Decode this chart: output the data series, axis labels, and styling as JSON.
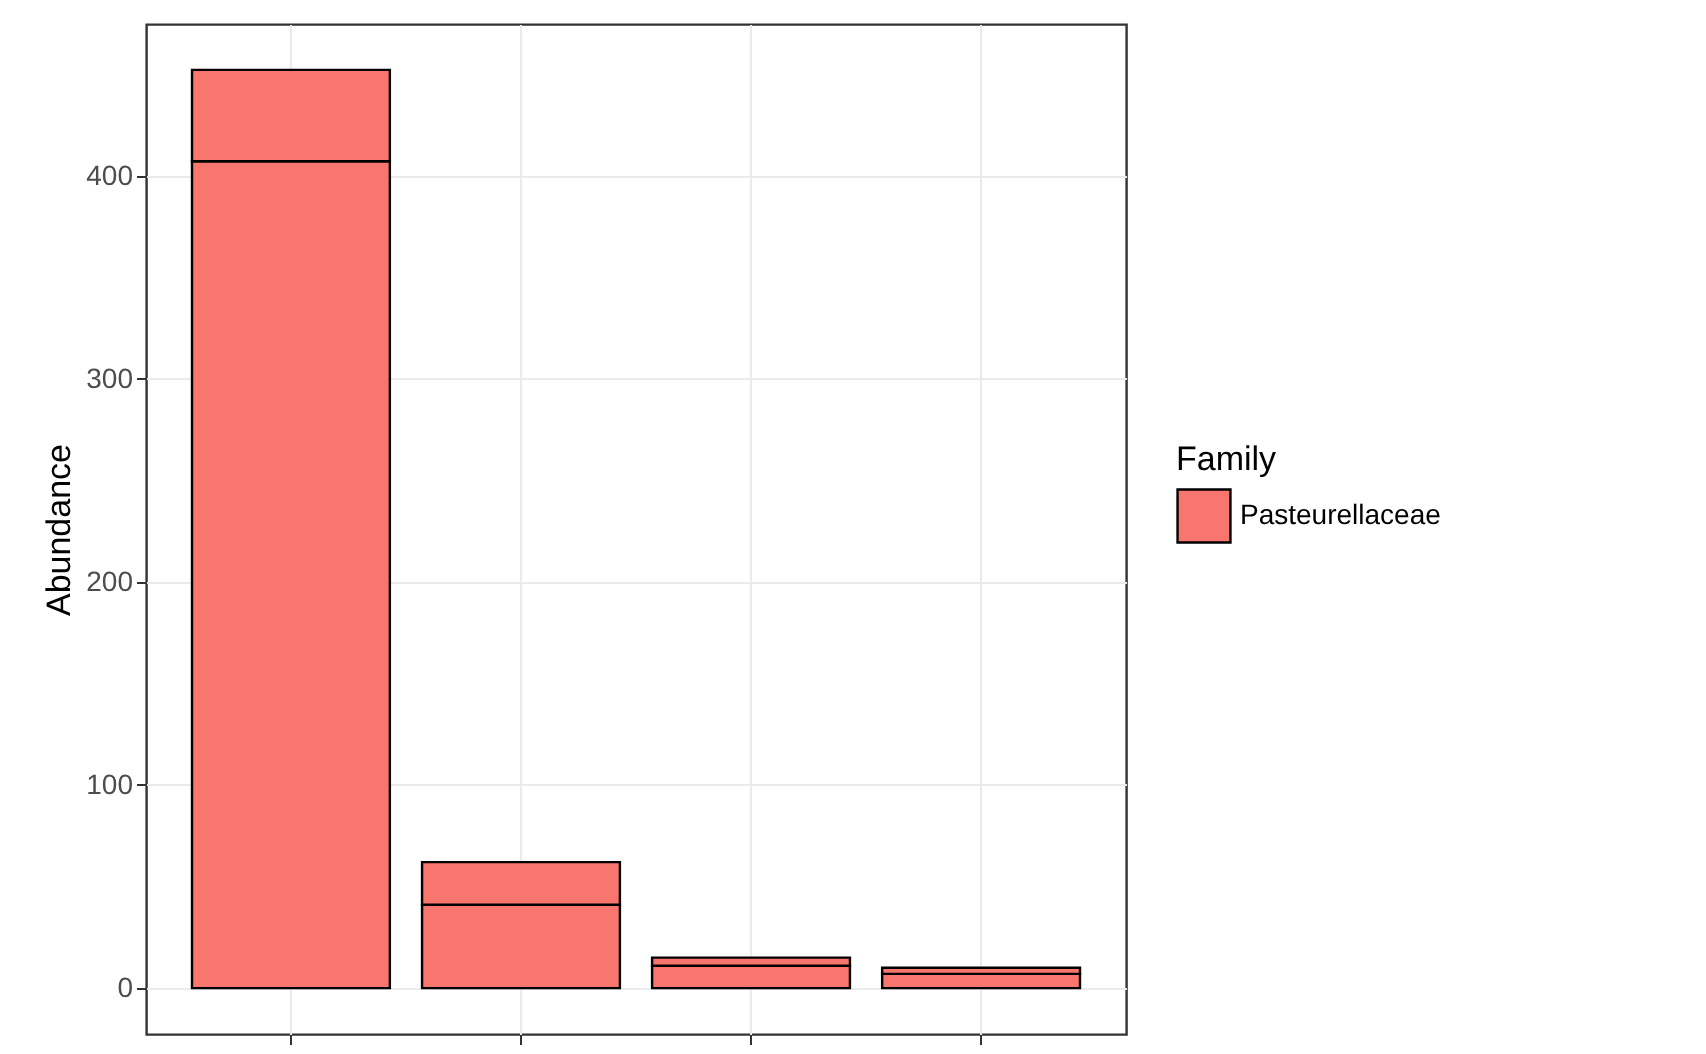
{
  "chart_data": {
    "type": "bar",
    "stacked": true,
    "ylabel": "Abundance",
    "legend_title": "Family",
    "legend": "right",
    "categories": [
      null,
      null,
      null,
      null
    ],
    "series": [
      {
        "name": "Pasteurellaceae",
        "color": "#f8766d",
        "values": [
          407,
          41,
          11,
          7
        ]
      },
      {
        "color": "#f8766d",
        "values": [
          45,
          21,
          4,
          3
        ]
      }
    ],
    "ylim": [
      -22.6,
      474.6
    ],
    "yticks": [
      0,
      100,
      200,
      300,
      400
    ],
    "grid": true,
    "tick_labels": "y"
  }
}
